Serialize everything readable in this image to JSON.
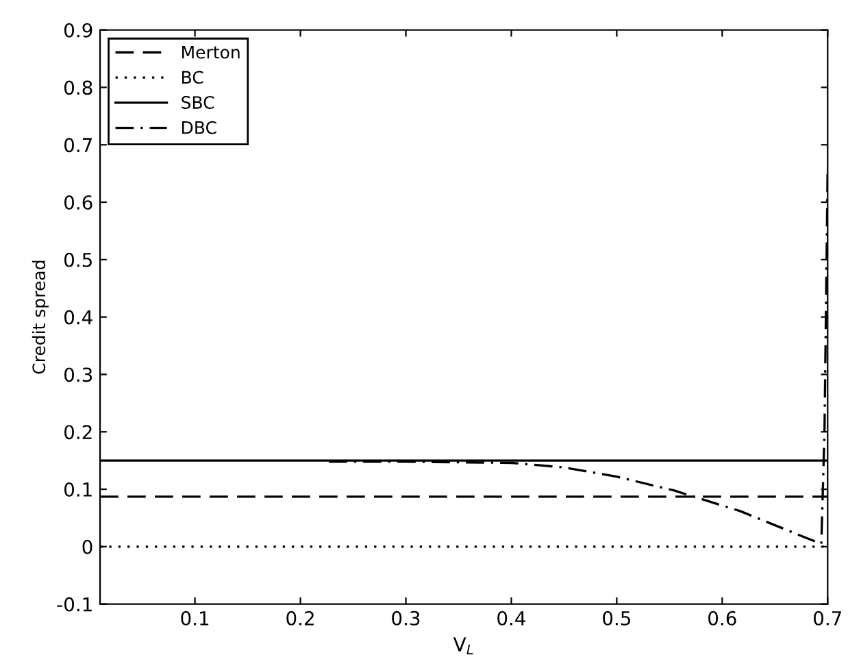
{
  "chart_data": {
    "type": "line",
    "xlabel": "V$_{L}$",
    "ylabel": "Credit spread",
    "xlim": [
      0.01,
      0.7
    ],
    "xticks": [
      0.1,
      0.2,
      0.3,
      0.4,
      0.5,
      0.6,
      0.7
    ],
    "ylim": [
      -0.1,
      0.9
    ],
    "yticks": [
      -0.1,
      0,
      0.1,
      0.2,
      0.3,
      0.4,
      0.5,
      0.6,
      0.7,
      0.8,
      0.9
    ],
    "grid": false,
    "legend": "top left",
    "series": [
      {
        "name": "Merton",
        "color": "#000000",
        "line_style": "dashed",
        "x": [
          0.01,
          0.7
        ],
        "values": [
          0.087,
          0.087
        ]
      },
      {
        "name": "BC",
        "color": "#000000",
        "line_style": "dotted",
        "x": [
          0.01,
          0.7
        ],
        "values": [
          0,
          0
        ]
      },
      {
        "name": "SBC",
        "color": "#000000",
        "line_style": "solid",
        "x": [
          0.01,
          0.7
        ],
        "values": [
          0.15,
          0.15
        ]
      },
      {
        "name": "DBC",
        "color": "#000000",
        "line_style": "dashdot",
        "x": [
          0.227,
          0.3,
          0.4,
          0.45,
          0.5,
          0.554,
          0.617,
          0.68,
          0.694,
          0.697,
          0.699,
          0.7
        ],
        "values": [
          0.148,
          0.148,
          0.146,
          0.138,
          0.122,
          0.098,
          0.062,
          0.015,
          0.005,
          0.2,
          0.5,
          0.66
        ]
      }
    ]
  }
}
